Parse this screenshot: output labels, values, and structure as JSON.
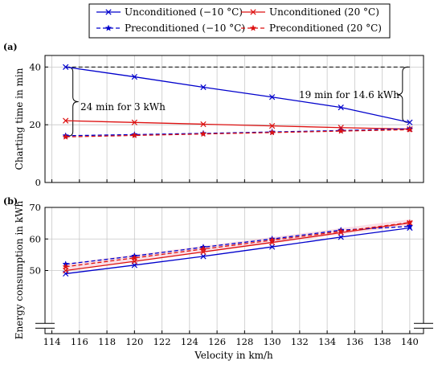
{
  "chart_data": [
    {
      "panel_label": "(a)",
      "type": "line",
      "xlim": [
        113.5,
        141
      ],
      "ylim": [
        0,
        44
      ],
      "yticks": [
        0,
        20,
        40
      ],
      "ylabel": "Charting time in min",
      "grid": true,
      "annotations": [
        {
          "text": "24 min for 3 kWh"
        },
        {
          "text": "19 min for 14.6 kWh"
        }
      ],
      "series": [
        {
          "name": "Unconditioned (−10 °C)",
          "color": "#0000cc",
          "dash": "solid",
          "marker": "x",
          "x": [
            115,
            120,
            125,
            130,
            135,
            140
          ],
          "y": [
            40.0,
            36.6,
            33.0,
            29.6,
            26.0,
            20.8
          ]
        },
        {
          "name": "Unconditioned (20 °C)",
          "color": "#dd1111",
          "dash": "solid",
          "marker": "x",
          "x": [
            115,
            120,
            125,
            130,
            135,
            140
          ],
          "y": [
            21.4,
            20.8,
            20.2,
            19.6,
            19.0,
            18.5
          ]
        },
        {
          "name": "Preconditioned (−10 °C)",
          "color": "#0000cc",
          "dash": "dashed",
          "marker": "star",
          "x": [
            115,
            120,
            125,
            130,
            135,
            140
          ],
          "y": [
            16.2,
            16.6,
            17.0,
            17.5,
            18.0,
            18.6
          ]
        },
        {
          "name": "Preconditioned (20 °C)",
          "color": "#dd1111",
          "dash": "dashed",
          "marker": "star",
          "x": [
            115,
            120,
            125,
            130,
            135,
            140
          ],
          "y": [
            15.8,
            16.3,
            16.8,
            17.3,
            17.8,
            18.3
          ]
        }
      ],
      "reference_line": {
        "y": 40,
        "color": "#000000",
        "dash": "dashed"
      }
    },
    {
      "panel_label": "(b)",
      "type": "line",
      "xlim": [
        113.5,
        141
      ],
      "ylim": [
        30,
        70
      ],
      "yticks": [
        50,
        60,
        70
      ],
      "xticks": [
        114,
        116,
        118,
        120,
        122,
        124,
        126,
        128,
        130,
        132,
        134,
        136,
        138,
        140
      ],
      "xlabel": "Velocity in km/h",
      "ylabel": "Energy consumption in kWh",
      "grid": true,
      "axis_break": true,
      "series": [
        {
          "name": "Unconditioned (−10 °C)",
          "color": "#0000cc",
          "dash": "solid",
          "marker": "x",
          "x": [
            115,
            120,
            125,
            130,
            135,
            140
          ],
          "y": [
            49.0,
            51.7,
            54.5,
            57.5,
            60.6,
            63.5
          ]
        },
        {
          "name": "Unconditioned (20 °C)",
          "color": "#dd1111",
          "dash": "solid",
          "marker": "x",
          "x": [
            115,
            120,
            125,
            130,
            135,
            140
          ],
          "y": [
            50.0,
            52.9,
            55.9,
            58.9,
            62.0,
            65.1
          ]
        },
        {
          "name": "Preconditioned (−10 °C)",
          "color": "#0000cc",
          "dash": "dashed",
          "marker": "star",
          "x": [
            115,
            120,
            125,
            130,
            135,
            140
          ],
          "y": [
            52.0,
            54.6,
            57.4,
            60.0,
            62.8,
            64.0
          ]
        },
        {
          "name": "Preconditioned (20 °C)",
          "color": "#dd1111",
          "dash": "dashed",
          "marker": "star",
          "x": [
            115,
            120,
            125,
            130,
            135,
            140
          ],
          "y": [
            51.2,
            54.0,
            56.8,
            59.6,
            62.4,
            65.2
          ]
        }
      ]
    }
  ],
  "legend": {
    "placement": "top-center",
    "entries": [
      {
        "label": "Unconditioned (−10 °C)",
        "color": "#0000cc",
        "dash": "solid",
        "marker": "x"
      },
      {
        "label": "Unconditioned (20 °C)",
        "color": "#dd1111",
        "dash": "solid",
        "marker": "x"
      },
      {
        "label": "Preconditioned (−10 °C)",
        "color": "#0000cc",
        "dash": "dashed",
        "marker": "star"
      },
      {
        "label": "Preconditioned (20 °C)",
        "color": "#dd1111",
        "dash": "dashed",
        "marker": "star"
      }
    ]
  }
}
